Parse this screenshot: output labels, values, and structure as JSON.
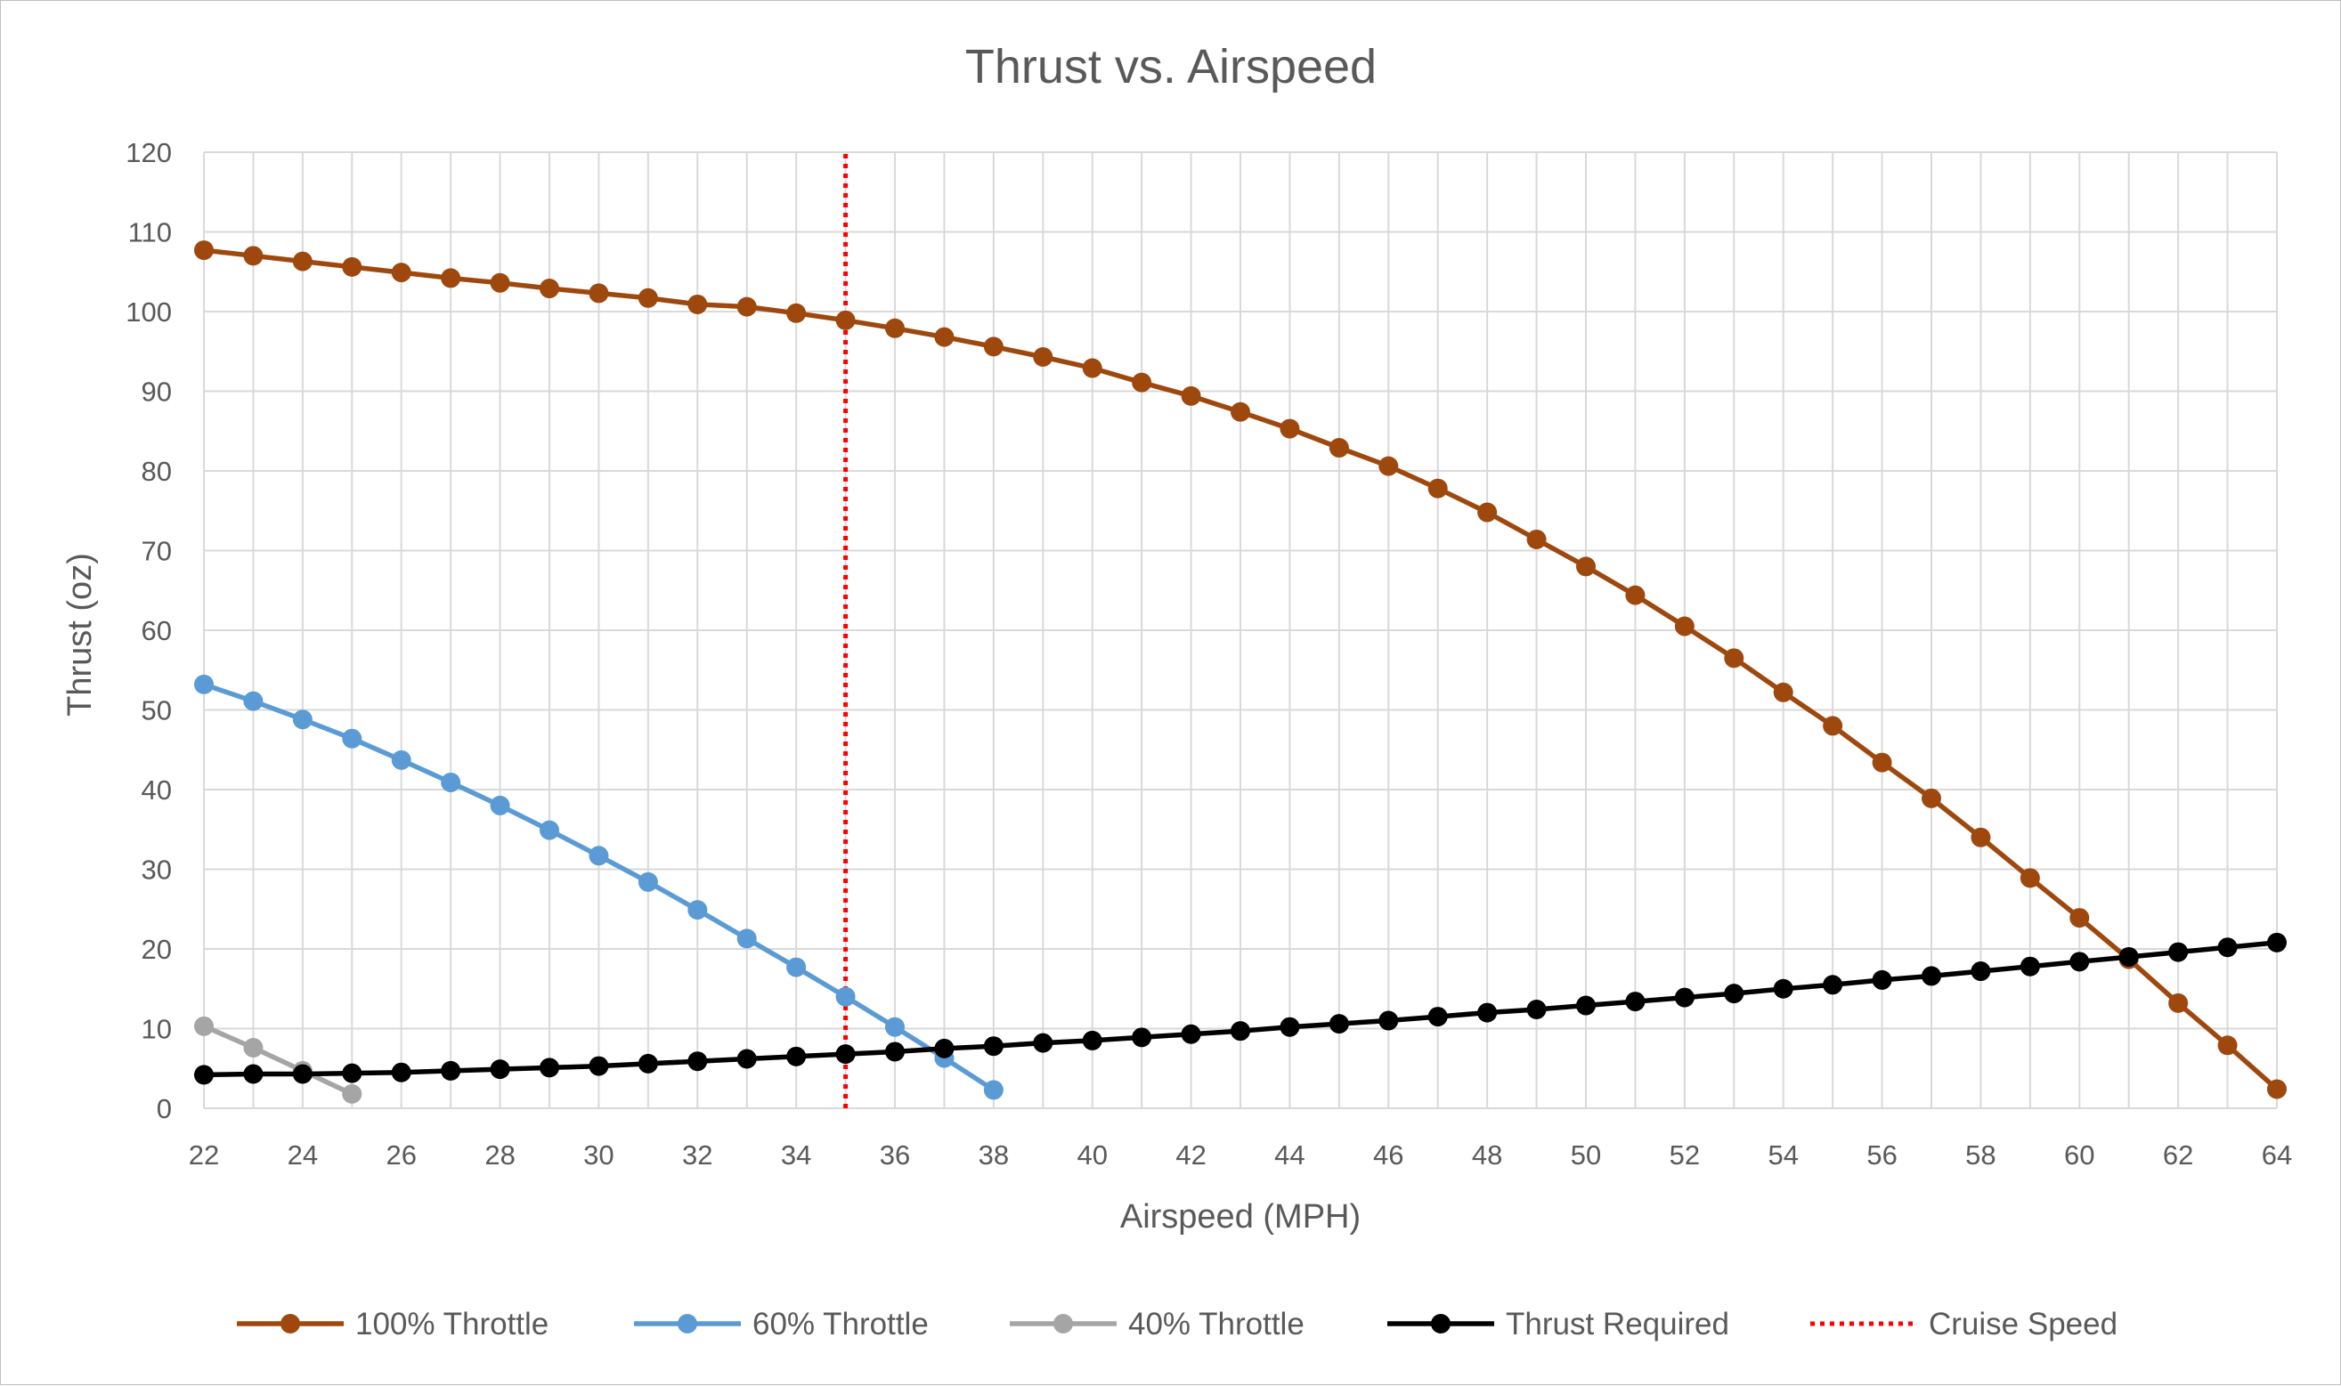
{
  "chart_data": {
    "type": "line",
    "title": "Thrust vs. Airspeed",
    "xlabel": "Airspeed (MPH)",
    "ylabel": "Thrust (oz)",
    "xlim": [
      22,
      64
    ],
    "ylim": [
      0,
      120
    ],
    "xticks": [
      22,
      24,
      26,
      28,
      30,
      32,
      34,
      36,
      38,
      40,
      42,
      44,
      46,
      48,
      50,
      52,
      54,
      56,
      58,
      60,
      62,
      64
    ],
    "yticks": [
      0,
      10,
      20,
      30,
      40,
      50,
      60,
      70,
      80,
      90,
      100,
      110,
      120
    ],
    "grid": true,
    "legend_position": "bottom",
    "series": [
      {
        "name": "100% Throttle",
        "color": "#9e480e",
        "marker": "circle",
        "x": [
          22,
          23,
          24,
          25,
          26,
          27,
          28,
          29,
          30,
          31,
          32,
          33,
          34,
          35,
          36,
          37,
          38,
          39,
          40,
          41,
          42,
          43,
          44,
          45,
          46,
          47,
          48,
          49,
          50,
          51,
          52,
          53,
          54,
          55,
          56,
          57,
          58,
          59,
          60,
          61,
          62,
          63,
          64
        ],
        "y": [
          107.7,
          107.0,
          106.3,
          105.6,
          104.9,
          104.2,
          103.6,
          102.9,
          102.3,
          101.7,
          100.9,
          100.6,
          99.8,
          98.9,
          97.9,
          96.8,
          95.6,
          94.3,
          92.9,
          91.1,
          89.4,
          87.4,
          85.3,
          82.9,
          80.6,
          77.8,
          74.8,
          71.4,
          68.0,
          64.4,
          60.5,
          56.5,
          52.2,
          48.0,
          43.4,
          38.9,
          34.0,
          28.9,
          23.9,
          18.7,
          13.2,
          7.9,
          2.4
        ]
      },
      {
        "name": "60% Throttle",
        "color": "#5b9bd5",
        "marker": "circle",
        "x": [
          22,
          23,
          24,
          25,
          26,
          27,
          28,
          29,
          30,
          31,
          32,
          33,
          34,
          35,
          36,
          37,
          38
        ],
        "y": [
          53.2,
          51.1,
          48.8,
          46.4,
          43.7,
          40.9,
          38.0,
          34.9,
          31.7,
          28.4,
          24.9,
          21.3,
          17.7,
          14.0,
          10.2,
          6.3,
          2.3
        ]
      },
      {
        "name": "40% Throttle",
        "color": "#a5a5a5",
        "marker": "circle",
        "x": [
          22,
          23,
          24,
          25
        ],
        "y": [
          10.3,
          7.6,
          4.7,
          1.8
        ]
      },
      {
        "name": "Thrust Required",
        "color": "#000000",
        "marker": "circle",
        "x": [
          22,
          23,
          24,
          25,
          26,
          27,
          28,
          29,
          30,
          31,
          32,
          33,
          34,
          35,
          36,
          37,
          38,
          39,
          40,
          41,
          42,
          43,
          44,
          45,
          46,
          47,
          48,
          49,
          50,
          51,
          52,
          53,
          54,
          55,
          56,
          57,
          58,
          59,
          60,
          61,
          62,
          63,
          64
        ],
        "y": [
          4.2,
          4.3,
          4.3,
          4.4,
          4.5,
          4.7,
          4.9,
          5.1,
          5.3,
          5.6,
          5.9,
          6.2,
          6.5,
          6.8,
          7.1,
          7.5,
          7.8,
          8.2,
          8.5,
          8.9,
          9.3,
          9.7,
          10.2,
          10.6,
          11.0,
          11.5,
          12.0,
          12.4,
          12.9,
          13.4,
          13.9,
          14.4,
          15.0,
          15.5,
          16.1,
          16.6,
          17.2,
          17.8,
          18.4,
          19.0,
          19.6,
          20.2,
          20.8
        ]
      },
      {
        "name": "Cruise Speed",
        "color": "#ff0000",
        "style": "dotted",
        "type": "vertical-line",
        "x": [
          35,
          35
        ],
        "y": [
          0,
          120
        ]
      }
    ]
  }
}
